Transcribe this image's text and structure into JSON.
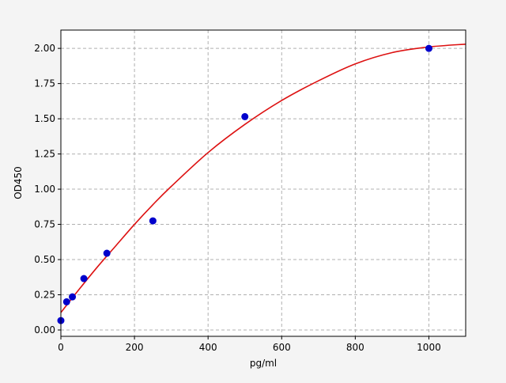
{
  "chart_data": {
    "type": "scatter",
    "title": "",
    "xlabel": "pg/ml",
    "ylabel": "OD450",
    "xlim": [
      0,
      1100
    ],
    "ylim": [
      -0.045,
      2.13
    ],
    "grid": true,
    "x_ticks": [
      0,
      200,
      400,
      600,
      800,
      1000
    ],
    "x_tick_labels": [
      "0",
      "200",
      "400",
      "600",
      "800",
      "1000"
    ],
    "y_ticks": [
      0,
      0.25,
      0.5,
      0.75,
      1.0,
      1.25,
      1.5,
      1.75,
      2.0
    ],
    "y_tick_labels": [
      "0.00",
      "0.25",
      "0.50",
      "0.75",
      "1.00",
      "1.25",
      "1.50",
      "1.75",
      "2.00"
    ],
    "points": {
      "color": "#0000cc",
      "x": [
        0,
        15.6,
        31.25,
        62.5,
        125,
        250,
        500,
        1000
      ],
      "y": [
        0.067,
        0.2,
        0.235,
        0.365,
        0.545,
        0.775,
        1.515,
        2.0
      ]
    },
    "fit_curve": {
      "color": "#dd1111",
      "x": [
        0,
        50,
        100,
        150,
        200,
        250,
        300,
        400,
        500,
        600,
        700,
        800,
        900,
        1000,
        1100
      ],
      "y": [
        0.124,
        0.29,
        0.45,
        0.6,
        0.75,
        0.89,
        1.02,
        1.26,
        1.46,
        1.63,
        1.77,
        1.89,
        1.97,
        2.01,
        2.03
      ]
    }
  }
}
